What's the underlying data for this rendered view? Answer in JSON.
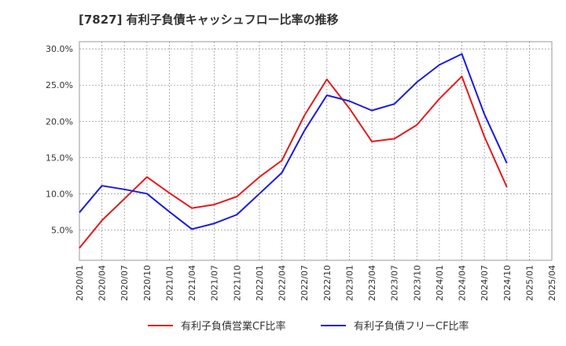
{
  "chart_data": {
    "type": "line",
    "title": "[7827]  有利子負債キャッシュフロー比率の推移",
    "x": [
      "2020/01",
      "2020/04",
      "2020/07",
      "2020/10",
      "2021/01",
      "2021/04",
      "2021/07",
      "2021/10",
      "2022/01",
      "2022/04",
      "2022/07",
      "2022/10",
      "2023/01",
      "2023/04",
      "2023/07",
      "2023/10",
      "2024/01",
      "2024/04",
      "2024/07",
      "2024/10",
      "2025/01",
      "2025/04"
    ],
    "ylim": [
      0.8,
      31.0
    ],
    "yticks": [
      5,
      10,
      15,
      20,
      25,
      30
    ],
    "ytick_labels": [
      "5.0%",
      "10.0%",
      "15.0%",
      "20.0%",
      "25.0%",
      "30.0%"
    ],
    "grid": true,
    "legend_position": "bottom",
    "series": [
      {
        "name": "有利子負債営業CF比率",
        "color": "#e31a1c",
        "values": [
          2.5,
          6.3,
          9.3,
          12.3,
          10.1,
          8.0,
          8.5,
          9.6,
          12.3,
          14.6,
          20.8,
          25.8,
          21.8,
          17.2,
          17.6,
          19.5,
          23.1,
          26.2,
          17.9,
          10.9,
          null,
          null
        ]
      },
      {
        "name": "有利子負債フリーCF比率",
        "color": "#1a1ae3",
        "values": [
          7.4,
          11.1,
          10.6,
          10.0,
          7.5,
          5.1,
          5.9,
          7.1,
          10.0,
          12.9,
          18.7,
          23.6,
          22.8,
          21.5,
          22.4,
          25.4,
          27.8,
          29.3,
          21.0,
          14.2,
          null,
          null
        ]
      }
    ]
  }
}
